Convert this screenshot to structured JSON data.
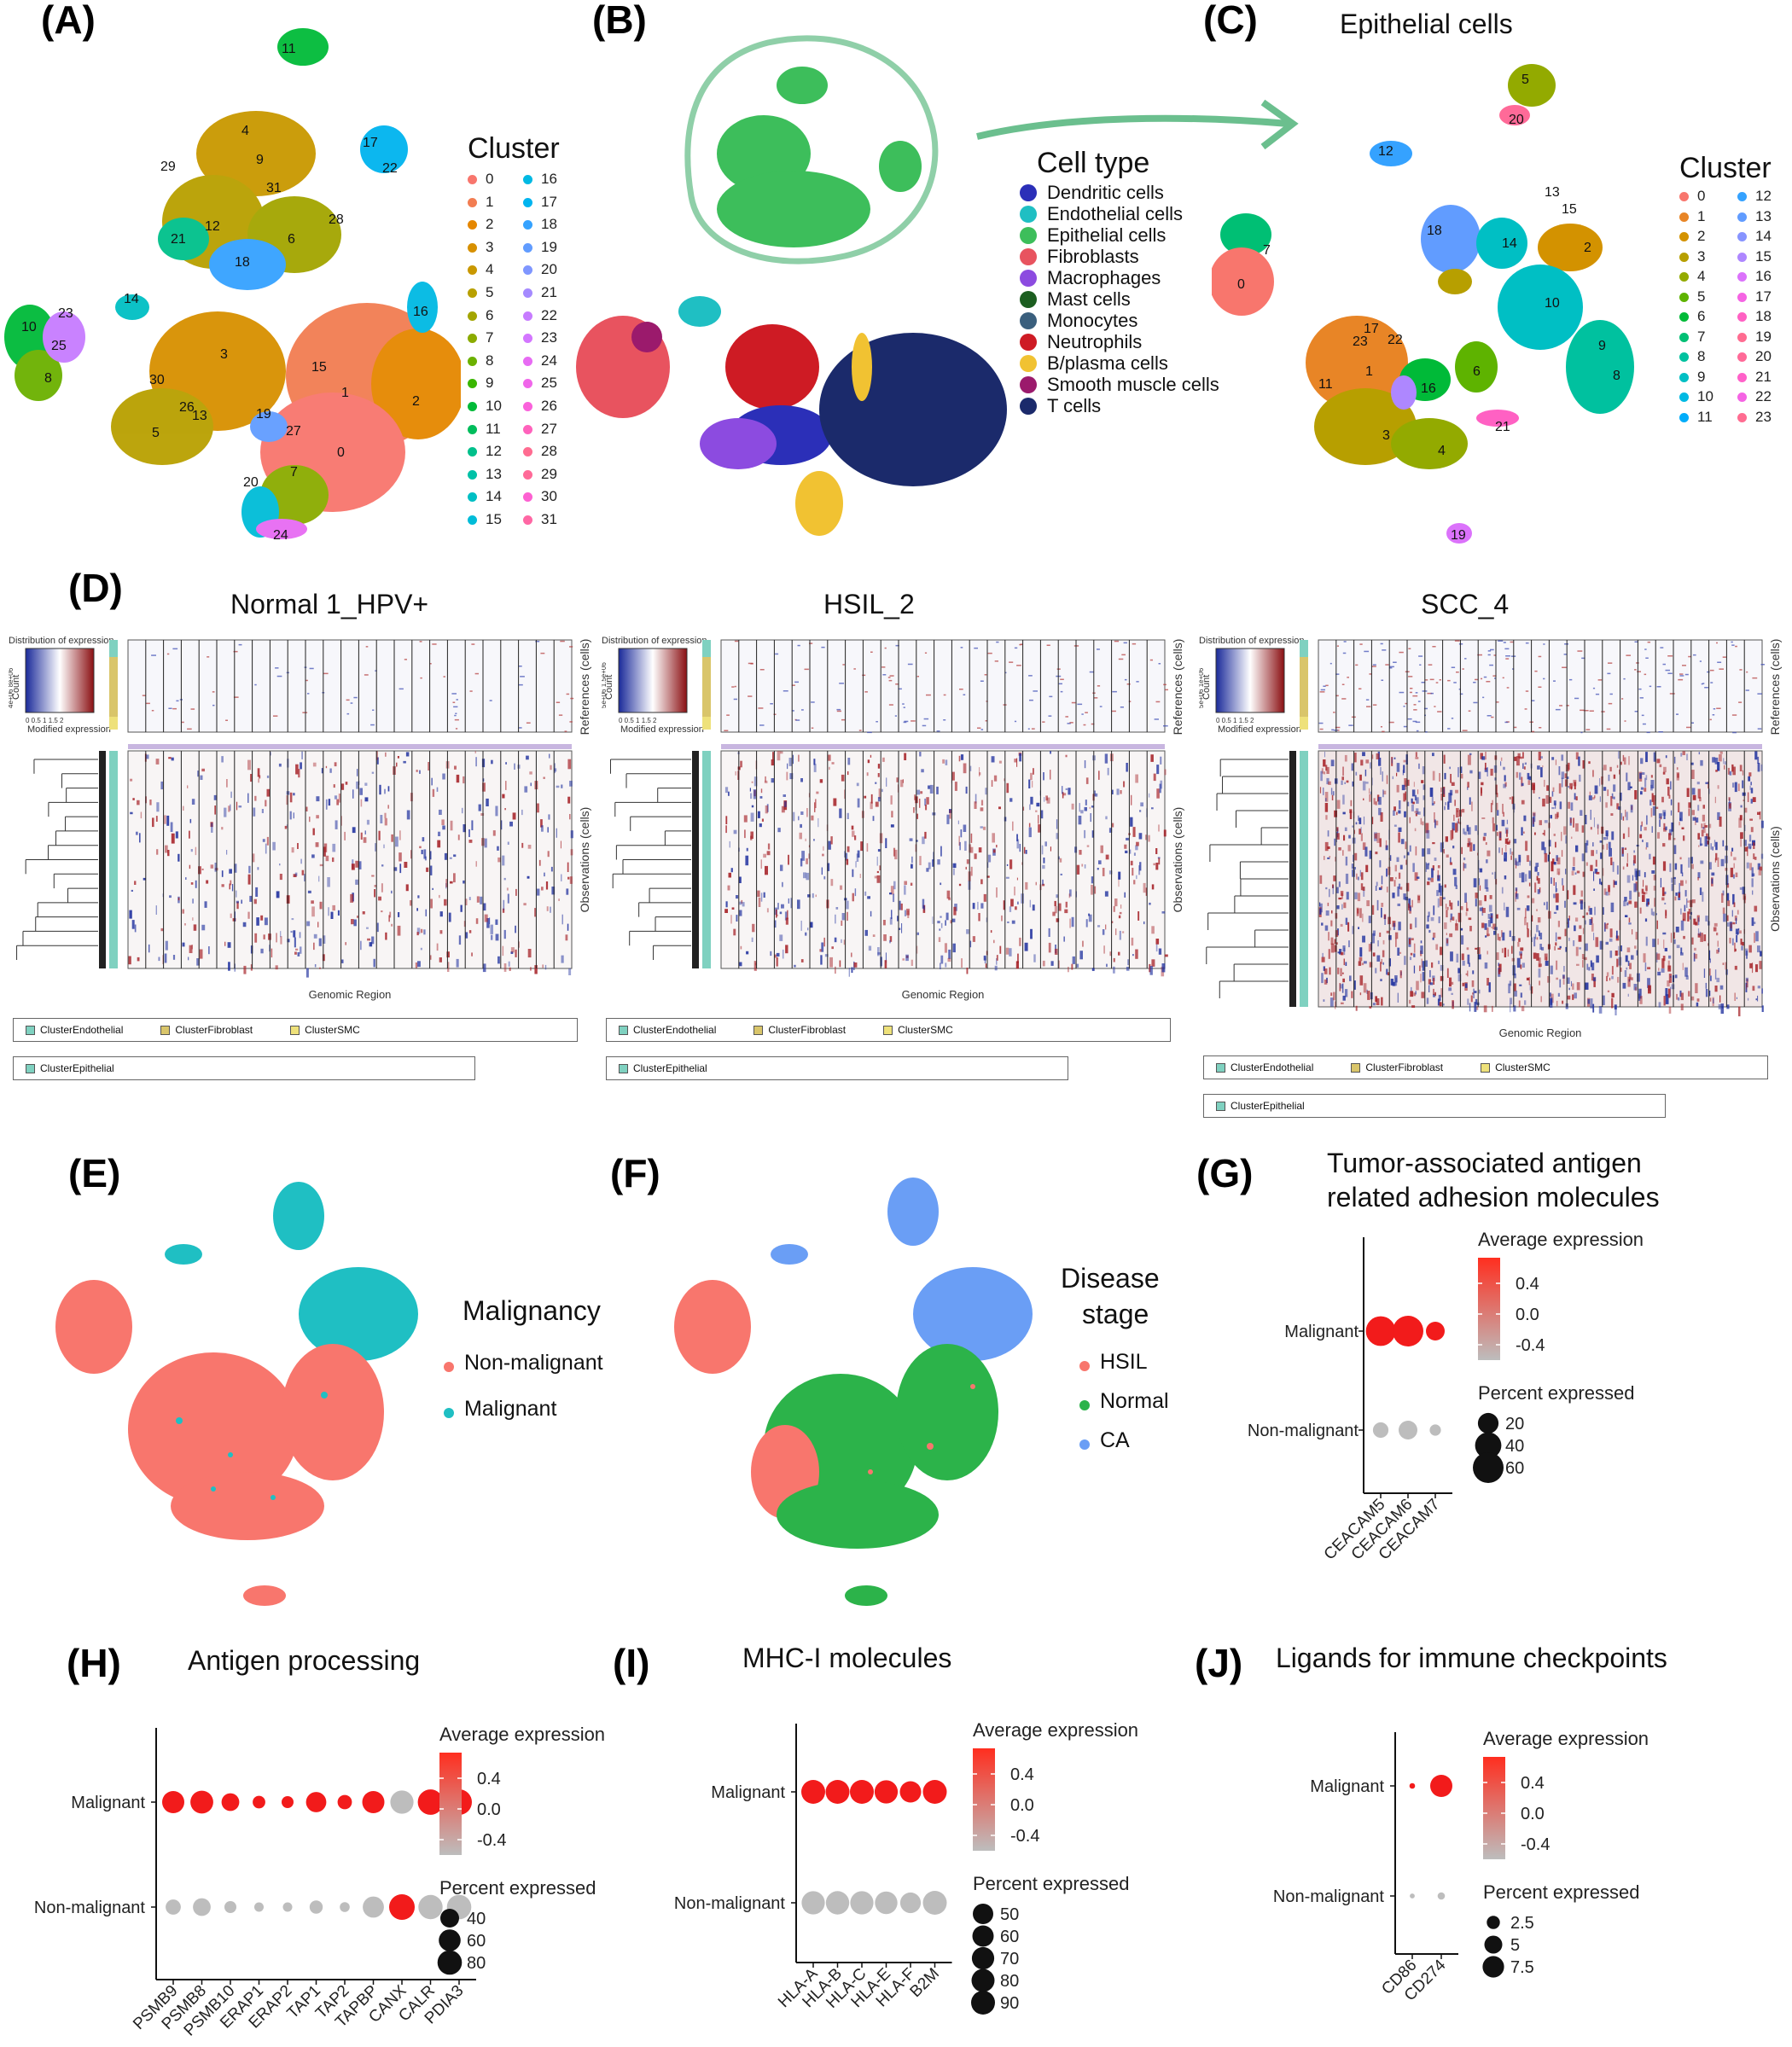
{
  "panels": {
    "A": {
      "label": "(A)",
      "legend_title": "Cluster",
      "clusters": [
        "0",
        "1",
        "2",
        "3",
        "4",
        "5",
        "6",
        "7",
        "8",
        "9",
        "10",
        "11",
        "12",
        "13",
        "14",
        "15",
        "16",
        "17",
        "18",
        "19",
        "20",
        "21",
        "22",
        "23",
        "24",
        "25",
        "26",
        "27",
        "28",
        "29",
        "30",
        "31"
      ],
      "colors": [
        "#F8766D",
        "#F27D52",
        "#E58700",
        "#D79000",
        "#C99800",
        "#B8A000",
        "#A3A500",
        "#8BAB00",
        "#6BB100",
        "#39B600",
        "#00BA38",
        "#00BD5C",
        "#00C08B",
        "#00C1A7",
        "#00BFC4",
        "#00BCD8",
        "#00B9E3",
        "#00B4EF",
        "#35A2FF",
        "#619CFF",
        "#7F96FF",
        "#A58AFF",
        "#C77CFF",
        "#D376FF",
        "#E76BF3",
        "#F066EA",
        "#FA62DB",
        "#FF62BC",
        "#FF6C91",
        "#FF6A98",
        "#FD61D1",
        "#FF67A4"
      ]
    },
    "B": {
      "label": "(B)",
      "legend_title": "Cell type",
      "items": [
        {
          "name": "Dendritic cells",
          "color": "#2B2FB8"
        },
        {
          "name": "Endothelial cells",
          "color": "#1FBFC3"
        },
        {
          "name": "Epithelial cells",
          "color": "#3DBE5B"
        },
        {
          "name": "Fibroblasts",
          "color": "#E8535F"
        },
        {
          "name": "Macrophages",
          "color": "#8C4BE0"
        },
        {
          "name": "Mast cells",
          "color": "#1C5E20"
        },
        {
          "name": "Monocytes",
          "color": "#3A5F7D"
        },
        {
          "name": "Neutrophils",
          "color": "#CE1B24"
        },
        {
          "name": "B/plasma cells",
          "color": "#F1C232"
        },
        {
          "name": "Smooth  muscle cells",
          "color": "#9B1A6C"
        },
        {
          "name": "T cells",
          "color": "#1B2A6B"
        }
      ]
    },
    "C": {
      "label": "(C)",
      "title": "Epithelial cells",
      "legend_title": "Cluster",
      "clusters": [
        "0",
        "1",
        "2",
        "3",
        "4",
        "5",
        "6",
        "7",
        "8",
        "9",
        "10",
        "11",
        "12",
        "13",
        "14",
        "15",
        "16",
        "17",
        "18",
        "19",
        "20",
        "21",
        "22",
        "23"
      ],
      "colors": [
        "#F8766D",
        "#E88526",
        "#D39200",
        "#B79F00",
        "#93AA00",
        "#5EB300",
        "#00BA38",
        "#00BF74",
        "#00C19F",
        "#00BFC4",
        "#00B9E3",
        "#00ADFA",
        "#35A2FF",
        "#619CFF",
        "#8794FF",
        "#AE87FF",
        "#DB72FB",
        "#F564E3",
        "#FF61C3",
        "#FF6C91",
        "#FF6A98",
        "#FF61C9",
        "#F564E3",
        "#FF6C91"
      ]
    },
    "D": {
      "label": "(D)",
      "heatmaps": [
        {
          "title": "Normal 1_HPV+",
          "legend1": [
            "ClusterEndothelial",
            "ClusterFibroblast",
            "ClusterSMC"
          ],
          "legend2": [
            "ClusterEpithelial"
          ],
          "xlabel": "Genomic Region",
          "ylabel_top": "References (cells)",
          "ylabel_bottom": "Observations (cells)",
          "key_title": "Distribution of expression",
          "key_xlabel": "Modified expression",
          "key_ylabel": "Count",
          "key_ticks": "0 0.5 1 1.5 2",
          "key_counts": "4e+06  8e+06"
        },
        {
          "title": "HSIL_2",
          "legend1": [
            "ClusterEndothelial",
            "ClusterFibroblast",
            "ClusterSMC"
          ],
          "legend2": [
            "ClusterEpithelial"
          ],
          "xlabel": "Genomic Region",
          "ylabel_top": "References (cells)",
          "ylabel_bottom": "Observations (cells)",
          "key_title": "Distribution of expression",
          "key_xlabel": "Modified expression",
          "key_ylabel": "Count",
          "key_ticks": "0 0.5 1 1.5 2",
          "key_counts": "5e+06  1.5e+06"
        },
        {
          "title": "SCC_4",
          "legend1": [
            "ClusterEndothelial",
            "ClusterFibroblast",
            "ClusterSMC"
          ],
          "legend2": [
            "ClusterEpithelial"
          ],
          "xlabel": "Genomic Region",
          "ylabel_top": "References (cells)",
          "ylabel_bottom": "Observations (cells)",
          "key_title": "Distribution of expression",
          "key_xlabel": "Modified expression",
          "key_ylabel": "Count",
          "key_ticks": "0 0.5 1 1.5 2",
          "key_counts": "5e+06  1e+06"
        }
      ]
    },
    "E": {
      "label": "(E)",
      "legend_title": "Malignancy",
      "items": [
        {
          "name": "Non-malignant",
          "color": "#F8766D"
        },
        {
          "name": "Malignant",
          "color": "#1FBFC3"
        }
      ]
    },
    "F": {
      "label": "(F)",
      "legend_title_1": "Disease",
      "legend_title_2": "stage",
      "items": [
        {
          "name": "HSIL",
          "color": "#F8766D"
        },
        {
          "name": "Normal",
          "color": "#2CB34A"
        },
        {
          "name": "CA",
          "color": "#6A9EF5"
        }
      ]
    },
    "G": {
      "label": "(G)",
      "title_1": "Tumor-associated antigen",
      "title_2": "related adhesion molecules"
    },
    "H": {
      "label": "(H)",
      "title": "Antigen processing"
    },
    "I": {
      "label": "(I)",
      "title": "MHC-I molecules"
    },
    "J": {
      "label": "(J)",
      "title": "Ligands for immune checkpoints"
    }
  },
  "dotplot_common": {
    "avg_title": "Average expression",
    "avg_ticks": [
      "0.4",
      "0.0",
      "-0.4"
    ],
    "pct_title": "Percent expressed",
    "rows": [
      "Malignant",
      "Non-malignant"
    ]
  },
  "chart_data": [
    {
      "type": "scatter",
      "panel": "G",
      "title": "Tumor-associated antigen related adhesion molecules",
      "categories": [
        "CEACAM5",
        "CEACAM6",
        "CEACAM7"
      ],
      "rows": [
        "Malignant",
        "Non-malignant"
      ],
      "avg_expression": {
        "Malignant": [
          0.7,
          0.7,
          0.7
        ],
        "Non-malignant": [
          -0.7,
          -0.7,
          -0.7
        ]
      },
      "percent_expressed": {
        "Malignant": [
          55,
          60,
          15
        ],
        "Non-malignant": [
          8,
          15,
          2
        ]
      },
      "avg_ticks": [
        0.4,
        0.0,
        -0.4
      ],
      "pct_ticks": [
        20,
        40,
        60
      ]
    },
    {
      "type": "scatter",
      "panel": "H",
      "title": "Antigen processing",
      "categories": [
        "PSMB9",
        "PSMB8",
        "PSMB10",
        "ERAP1",
        "ERAP2",
        "TAP1",
        "TAP2",
        "TAPBP",
        "CANX",
        "CALR",
        "PDIA3"
      ],
      "rows": [
        "Malignant",
        "Non-malignant"
      ],
      "avg_expression": {
        "Malignant": [
          0.7,
          0.7,
          0.7,
          0.7,
          0.7,
          0.7,
          0.7,
          0.7,
          -0.7,
          0.7,
          0.7
        ],
        "Non-malignant": [
          -0.7,
          -0.7,
          -0.7,
          -0.7,
          -0.7,
          -0.7,
          -0.7,
          -0.7,
          0.7,
          -0.7,
          -0.7
        ]
      },
      "percent_expressed": {
        "Malignant": [
          62,
          68,
          34,
          12,
          10,
          50,
          18,
          62,
          70,
          88,
          90
        ],
        "Non-malignant": [
          22,
          34,
          10,
          4,
          4,
          14,
          5,
          55,
          90,
          78,
          80
        ]
      },
      "avg_ticks": [
        0.4,
        0.0,
        -0.4
      ],
      "pct_ticks": [
        40,
        60,
        80
      ]
    },
    {
      "type": "scatter",
      "panel": "I",
      "title": "MHC-I molecules",
      "categories": [
        "HLA-A",
        "HLA-B",
        "HLA-C",
        "HLA-E",
        "HLA-F",
        "B2M"
      ],
      "rows": [
        "Malignant",
        "Non-malignant"
      ],
      "avg_expression": {
        "Malignant": [
          0.7,
          0.7,
          0.7,
          0.7,
          0.7,
          0.7
        ],
        "Non-malignant": [
          -0.7,
          -0.7,
          -0.7,
          -0.7,
          -0.7,
          -0.7
        ]
      },
      "percent_expressed": {
        "Malignant": [
          90,
          90,
          90,
          82,
          60,
          90
        ],
        "Non-malignant": [
          82,
          84,
          82,
          72,
          52,
          90
        ]
      },
      "avg_ticks": [
        0.4,
        0.0,
        -0.4
      ],
      "pct_ticks": [
        50,
        60,
        70,
        80,
        90
      ]
    },
    {
      "type": "scatter",
      "panel": "J",
      "title": "Ligands for immune checkpoints",
      "categories": [
        "CD86",
        "CD274"
      ],
      "rows": [
        "Malignant",
        "Non-malignant"
      ],
      "avg_expression": {
        "Malignant": [
          0.7,
          0.7
        ],
        "Non-malignant": [
          -0.7,
          -0.7
        ]
      },
      "percent_expressed": {
        "Malignant": [
          0.3,
          8
        ],
        "Non-malignant": [
          0.2,
          0.6
        ]
      },
      "avg_ticks": [
        0.4,
        0.0,
        -0.4
      ],
      "pct_ticks": [
        2.5,
        5.0,
        7.5
      ]
    }
  ]
}
